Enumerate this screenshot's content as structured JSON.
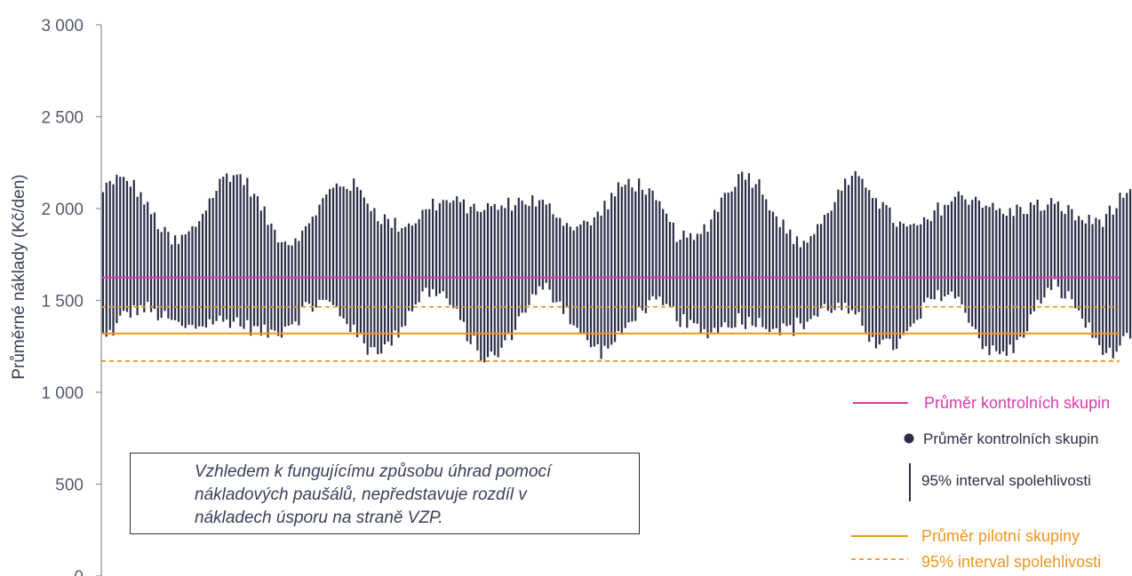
{
  "chart_data": {
    "type": "errorbar",
    "ylabel": "Průměrné náklady (Kč/den)",
    "ylim": [
      0,
      3000
    ],
    "y_ticks": [
      {
        "value": 0,
        "label": "0"
      },
      {
        "value": 500,
        "label": "500"
      },
      {
        "value": 1000,
        "label": "1 000"
      },
      {
        "value": 1500,
        "label": "1 500"
      },
      {
        "value": 2000,
        "label": "2 000"
      },
      {
        "value": 2500,
        "label": "2 500"
      },
      {
        "value": 3000,
        "label": "3 000"
      }
    ],
    "n_intervals": 300,
    "interval_mean_range": [
      1550,
      1830
    ],
    "interval_halfwidth_range": [
      200,
      420
    ],
    "reference_lines": {
      "control_mean": 1625,
      "pilot_mean": 1320,
      "pilot_ci_upper": 1465,
      "pilot_ci_lower": 1170
    },
    "legend": [
      {
        "label": "Průměr kontrolních skupin",
        "marker": "pink-line"
      },
      {
        "label": "Průměr kontrolních skupin",
        "marker": "dark-dot"
      },
      {
        "label": "95% interval spolehlivosti",
        "marker": "dark-vline"
      },
      {
        "label": "Průměr pilotní skupiny",
        "marker": "orange-line"
      },
      {
        "label": "95% interval spolehlivosti",
        "marker": "orange-dashed"
      }
    ],
    "note_lines": [
      "Vzhledem k fungujícímu způsobu úhrad pomocí",
      "nákladových paušálů, nepředstavuje rozdíl v",
      "nákladech úsporu na straně VZP."
    ],
    "colors": {
      "interval": "#2b2d47",
      "control_mean": "#d63cae",
      "pilot": "#f0961e",
      "axis": "#8a8ea0",
      "text": "#555a6e"
    }
  }
}
